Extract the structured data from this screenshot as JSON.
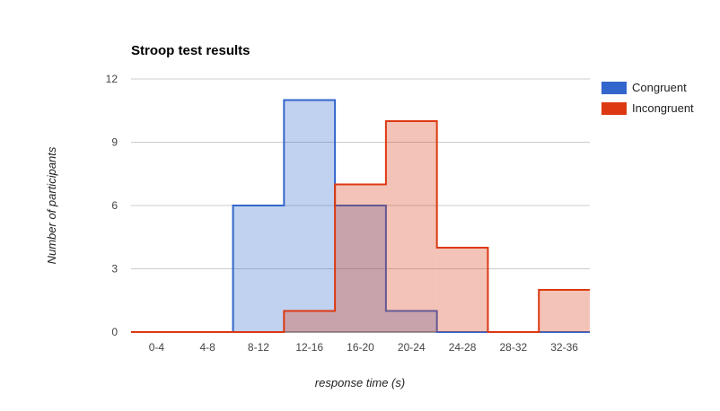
{
  "chart_data": {
    "type": "step-area",
    "title": "Stroop test results",
    "xlabel": "response time (s)",
    "ylabel": "Number of participants",
    "categories": [
      "0-4",
      "4-8",
      "8-12",
      "12-16",
      "16-20",
      "20-24",
      "24-28",
      "28-32",
      "32-36"
    ],
    "ylim": [
      0,
      12
    ],
    "yticks": [
      0,
      3,
      6,
      9,
      12
    ],
    "grid": true,
    "legend_position": "right",
    "series": [
      {
        "name": "Congruent",
        "color": "#3366cc",
        "fill": "#c2d1f0",
        "values": [
          0,
          0,
          6,
          11,
          6,
          1,
          0,
          0,
          0
        ]
      },
      {
        "name": "Incongruent",
        "color": "#dc3912",
        "fill": "#f5c4b8",
        "values": [
          0,
          0,
          0,
          1,
          7,
          10,
          4,
          0,
          2
        ]
      }
    ]
  }
}
